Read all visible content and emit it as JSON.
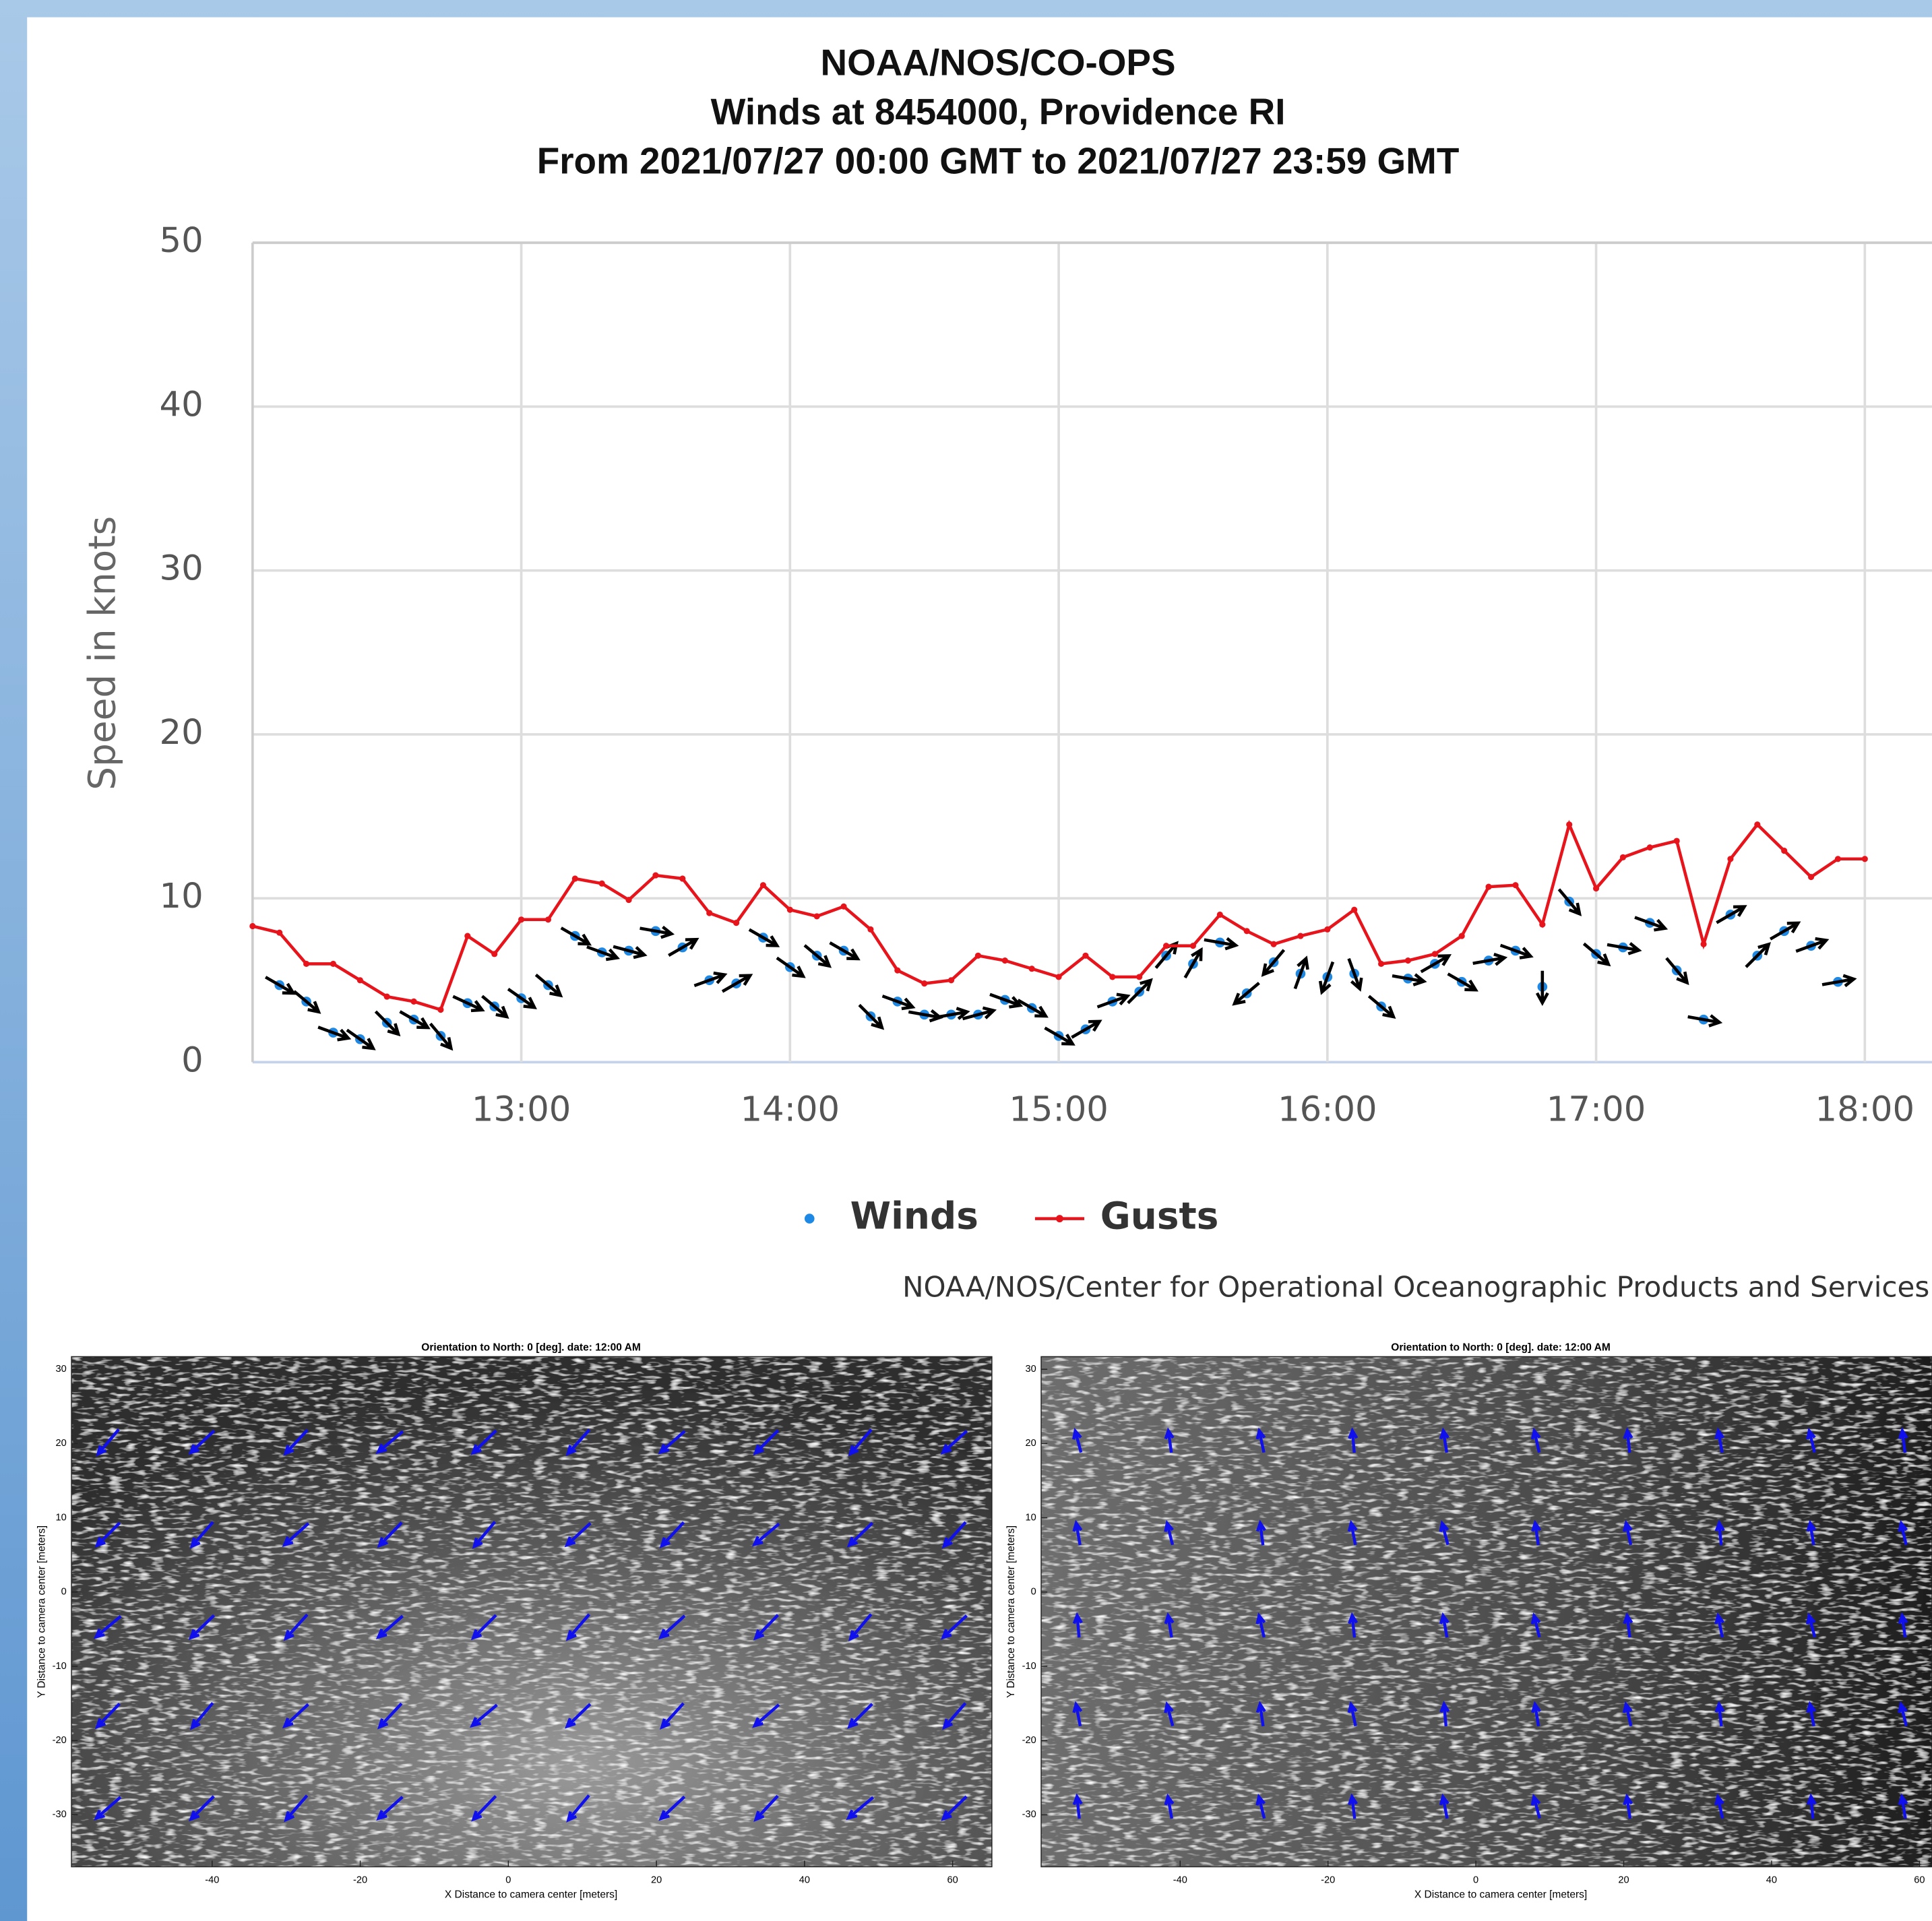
{
  "chart_data": [
    {
      "type": "line",
      "title": [
        "NOAA/NOS/CO-OPS",
        "Winds at 8454000, Providence RI",
        "From 2021/07/27 00:00 GMT to 2021/07/27 23:59 GMT"
      ],
      "ylabel": "Speed in knots",
      "credit": "NOAA/NOS/Center for Operational Oceanographic Products and Services",
      "xlim": [
        12,
        18.25
      ],
      "xticks": [
        {
          "value": 13,
          "label": "13:00"
        },
        {
          "value": 14,
          "label": "14:00"
        },
        {
          "value": 15,
          "label": "15:00"
        },
        {
          "value": 16,
          "label": "16:00"
        },
        {
          "value": 17,
          "label": "17:00"
        },
        {
          "value": 18,
          "label": "18:00"
        }
      ],
      "ylim": [
        0,
        50
      ],
      "yticks": [
        0,
        10,
        20,
        30,
        40,
        50
      ],
      "grid": true,
      "series": [
        {
          "name": "Winds",
          "color": "#1e88e5",
          "type": "scatter",
          "x": [
            12.1,
            12.2,
            12.3,
            12.4,
            12.5,
            12.6,
            12.7,
            12.8,
            12.9,
            13.0,
            13.1,
            13.2,
            13.3,
            13.4,
            13.5,
            13.6,
            13.7,
            13.8,
            13.9,
            14.0,
            14.1,
            14.2,
            14.3,
            14.4,
            14.5,
            14.6,
            14.7,
            14.8,
            14.9,
            15.0,
            15.1,
            15.2,
            15.3,
            15.4,
            15.5,
            15.6,
            15.7,
            15.8,
            15.9,
            16.0,
            16.1,
            16.2,
            16.3,
            16.4,
            16.5,
            16.6,
            16.7,
            16.8,
            16.9,
            17.0,
            17.1,
            17.2,
            17.3,
            17.4,
            17.5,
            17.6,
            17.7,
            17.8,
            17.9
          ],
          "values": [
            4.7,
            3.7,
            1.8,
            1.4,
            2.4,
            2.6,
            1.6,
            3.6,
            3.4,
            3.9,
            4.7,
            7.7,
            6.7,
            6.8,
            8.0,
            7.0,
            5.0,
            4.8,
            7.6,
            5.8,
            6.5,
            6.8,
            2.8,
            3.7,
            2.9,
            2.9,
            2.9,
            3.8,
            3.3,
            1.6,
            2.0,
            3.7,
            4.3,
            6.5,
            6.0,
            7.3,
            4.2,
            6.1,
            5.4,
            5.2,
            5.4,
            3.4,
            5.1,
            6.0,
            4.9,
            6.2,
            6.8,
            4.6,
            9.8,
            6.6,
            7.0,
            8.5,
            5.6,
            2.6,
            9.0,
            6.5,
            8.0,
            7.1,
            4.9
          ],
          "direction": [
            120,
            130,
            110,
            125,
            135,
            120,
            140,
            115,
            130,
            125,
            130,
            120,
            110,
            105,
            100,
            60,
            70,
            60,
            120,
            125,
            130,
            120,
            135,
            110,
            100,
            80,
            75,
            110,
            120,
            120,
            60,
            70,
            45,
            40,
            30,
            100,
            230,
            220,
            20,
            200,
            160,
            130,
            100,
            60,
            120,
            80,
            110,
            180,
            140,
            130,
            100,
            110,
            140,
            100,
            60,
            45,
            60,
            70,
            80
          ]
        },
        {
          "name": "Gusts",
          "color": "#e8141c",
          "type": "line",
          "x": [
            12.0,
            12.1,
            12.2,
            12.3,
            12.4,
            12.5,
            12.6,
            12.7,
            12.8,
            12.9,
            13.0,
            13.1,
            13.2,
            13.3,
            13.4,
            13.5,
            13.6,
            13.7,
            13.8,
            13.9,
            14.0,
            14.1,
            14.2,
            14.3,
            14.4,
            14.5,
            14.6,
            14.7,
            14.8,
            14.9,
            15.0,
            15.1,
            15.2,
            15.3,
            15.4,
            15.5,
            15.6,
            15.7,
            15.8,
            15.9,
            16.0,
            16.1,
            16.2,
            16.3,
            16.4,
            16.5,
            16.6,
            16.7,
            16.8,
            16.9,
            17.0,
            17.1,
            17.2,
            17.3,
            17.4,
            17.5,
            17.6,
            17.7,
            17.8,
            17.9,
            18.0
          ],
          "values": [
            8.3,
            7.9,
            6.0,
            6.0,
            5.0,
            4.0,
            3.7,
            3.2,
            7.7,
            6.6,
            8.7,
            8.7,
            11.2,
            10.9,
            9.9,
            11.4,
            11.2,
            9.1,
            8.5,
            10.8,
            9.3,
            8.9,
            9.5,
            8.1,
            5.6,
            4.8,
            5.0,
            6.5,
            6.2,
            5.7,
            5.2,
            6.5,
            5.2,
            5.2,
            7.1,
            7.1,
            9.0,
            8.0,
            7.2,
            7.7,
            8.1,
            9.3,
            6.0,
            6.2,
            6.6,
            7.7,
            10.7,
            10.8,
            8.4,
            14.5,
            10.6,
            12.5,
            13.1,
            13.5,
            7.2,
            12.4,
            14.5,
            12.9,
            11.3,
            12.4,
            12.4
          ]
        }
      ]
    },
    {
      "type": "image",
      "title": "Orientation to North: 0 [deg].  date: 12:00 AM",
      "xlabel": "X Distance to camera center [meters]",
      "ylabel": "Y Distance to camera center [meters]",
      "xlim": [
        -59,
        65.3
      ],
      "ylim": [
        -37,
        31.7
      ],
      "xticks": [
        -40,
        -20,
        0,
        20,
        40,
        60
      ],
      "yticks": [
        30,
        20,
        10,
        0,
        -10,
        -20,
        -30
      ]
    },
    {
      "type": "image",
      "title": "Orientation to North: 0 [deg].  date: 12:00 AM",
      "xlabel": "X Distance to camera center [meters]",
      "ylabel": "Y Distance to camera center [meters]",
      "xlim": [
        -58.8,
        61.7
      ],
      "ylim": [
        -37,
        31.7
      ],
      "xticks": [
        -40,
        -20,
        0,
        20,
        40,
        60
      ],
      "yticks": [
        30,
        20,
        10,
        0,
        -10,
        -20,
        -30
      ]
    }
  ]
}
